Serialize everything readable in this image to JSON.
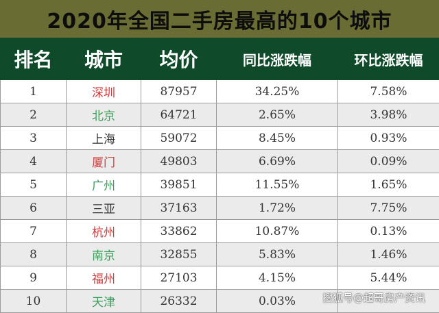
{
  "title": "2020年全国二手房最高的10个城市",
  "columns": [
    "排名",
    "城市",
    "均价",
    "同比涨跌幅",
    "环比涨跌幅"
  ],
  "colors": {
    "title_bg": "#6a6d33",
    "header_bg": "#0f4a2a",
    "city_red": "#d23b3b",
    "city_green": "#3a9e5a",
    "city_dark": "#333333"
  },
  "rows": [
    {
      "rank": "1",
      "city": "深圳",
      "city_color": "red",
      "price": "87957",
      "yoy": "34.25%",
      "mom": "7.58%"
    },
    {
      "rank": "2",
      "city": "北京",
      "city_color": "green",
      "price": "64721",
      "yoy": "2.65%",
      "mom": "3.98%"
    },
    {
      "rank": "3",
      "city": "上海",
      "city_color": "dark",
      "price": "59072",
      "yoy": "8.45%",
      "mom": "0.93%"
    },
    {
      "rank": "4",
      "city": "厦门",
      "city_color": "red",
      "price": "49803",
      "yoy": "6.69%",
      "mom": "0.09%"
    },
    {
      "rank": "5",
      "city": "广州",
      "city_color": "green",
      "price": "39851",
      "yoy": "11.55%",
      "mom": "1.65%"
    },
    {
      "rank": "6",
      "city": "三亚",
      "city_color": "dark",
      "price": "37163",
      "yoy": "1.72%",
      "mom": "7.75%"
    },
    {
      "rank": "7",
      "city": "杭州",
      "city_color": "red",
      "price": "33862",
      "yoy": "10.87%",
      "mom": "0.13%"
    },
    {
      "rank": "8",
      "city": "南京",
      "city_color": "green",
      "price": "32855",
      "yoy": "5.83%",
      "mom": "1.46%"
    },
    {
      "rank": "9",
      "city": "福州",
      "city_color": "red",
      "price": "27103",
      "yoy": "4.15%",
      "mom": "5.44%"
    },
    {
      "rank": "10",
      "city": "天津",
      "city_color": "green",
      "price": "26332",
      "yoy": "0.03%",
      "mom": ""
    }
  ],
  "watermark": "搜狐号@超哥房产资讯"
}
